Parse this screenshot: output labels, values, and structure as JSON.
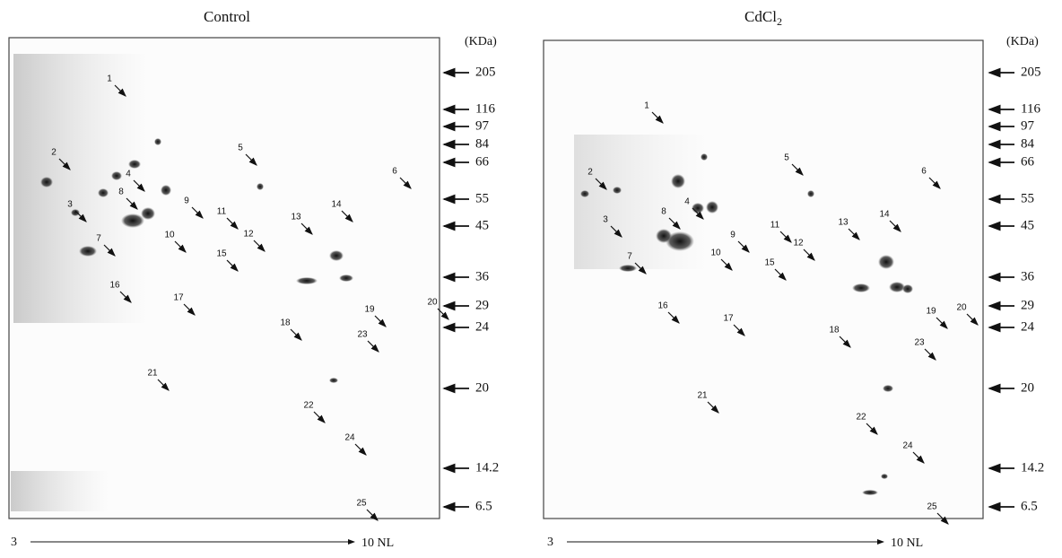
{
  "panels": [
    {
      "title": "Control",
      "kda_label": "(KDa)",
      "markers": [
        "205",
        "116",
        "97",
        "84",
        "66",
        "55",
        "45",
        "36",
        "29",
        "24",
        "20",
        "14.2",
        "6.5"
      ],
      "spots": [
        "1",
        "2",
        "3",
        "4",
        "5",
        "6",
        "7",
        "8",
        "9",
        "10",
        "11",
        "12",
        "13",
        "14",
        "15",
        "16",
        "17",
        "18",
        "19",
        "20",
        "21",
        "22",
        "23",
        "24",
        "25"
      ],
      "x_axis": {
        "start": "3",
        "end": "10 NL"
      }
    },
    {
      "title": "CdCl",
      "title_subscript": "2",
      "kda_label": "(KDa)",
      "markers": [
        "205",
        "116",
        "97",
        "84",
        "66",
        "55",
        "45",
        "36",
        "29",
        "24",
        "20",
        "14.2",
        "6.5"
      ],
      "spots": [
        "1",
        "2",
        "3",
        "4",
        "5",
        "6",
        "7",
        "8",
        "9",
        "10",
        "11",
        "12",
        "13",
        "14",
        "15",
        "16",
        "17",
        "18",
        "19",
        "20",
        "21",
        "22",
        "23",
        "24",
        "25"
      ],
      "x_axis": {
        "start": "3",
        "end": "10 NL"
      }
    }
  ]
}
